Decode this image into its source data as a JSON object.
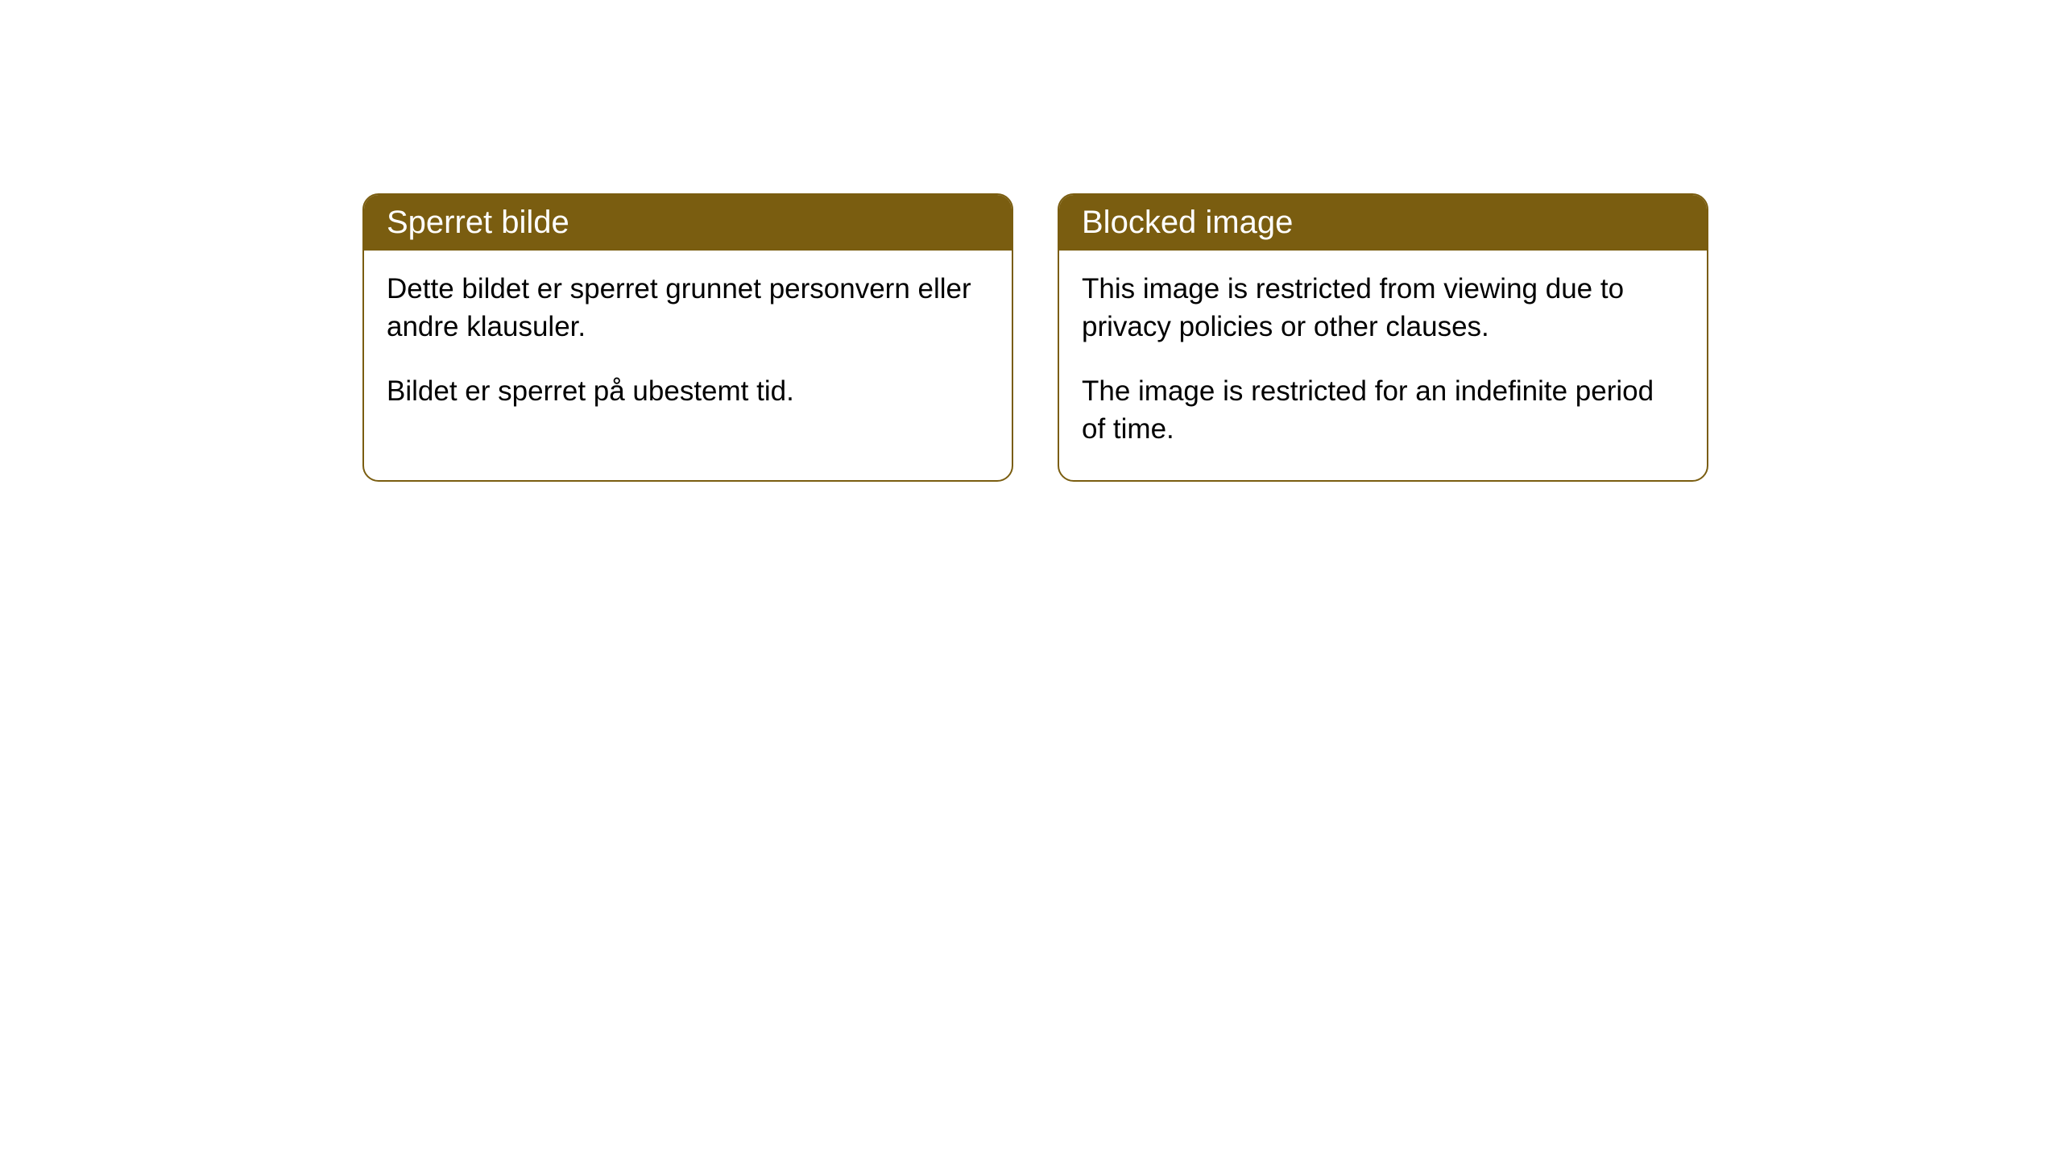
{
  "cards": [
    {
      "title": "Sperret bilde",
      "paragraph1": "Dette bildet er sperret grunnet personvern eller andre klausuler.",
      "paragraph2": "Bildet er sperret på ubestemt tid."
    },
    {
      "title": "Blocked image",
      "paragraph1": "This image is restricted from viewing due to privacy policies or other clauses.",
      "paragraph2": "The image is restricted for an indefinite period of time."
    }
  ],
  "styling": {
    "header_bg_color": "#7a5d10",
    "header_text_color": "#ffffff",
    "border_color": "#7a5d10",
    "body_text_color": "#000000",
    "background_color": "#ffffff",
    "border_radius": 20,
    "title_fontsize": 40,
    "body_fontsize": 35
  }
}
